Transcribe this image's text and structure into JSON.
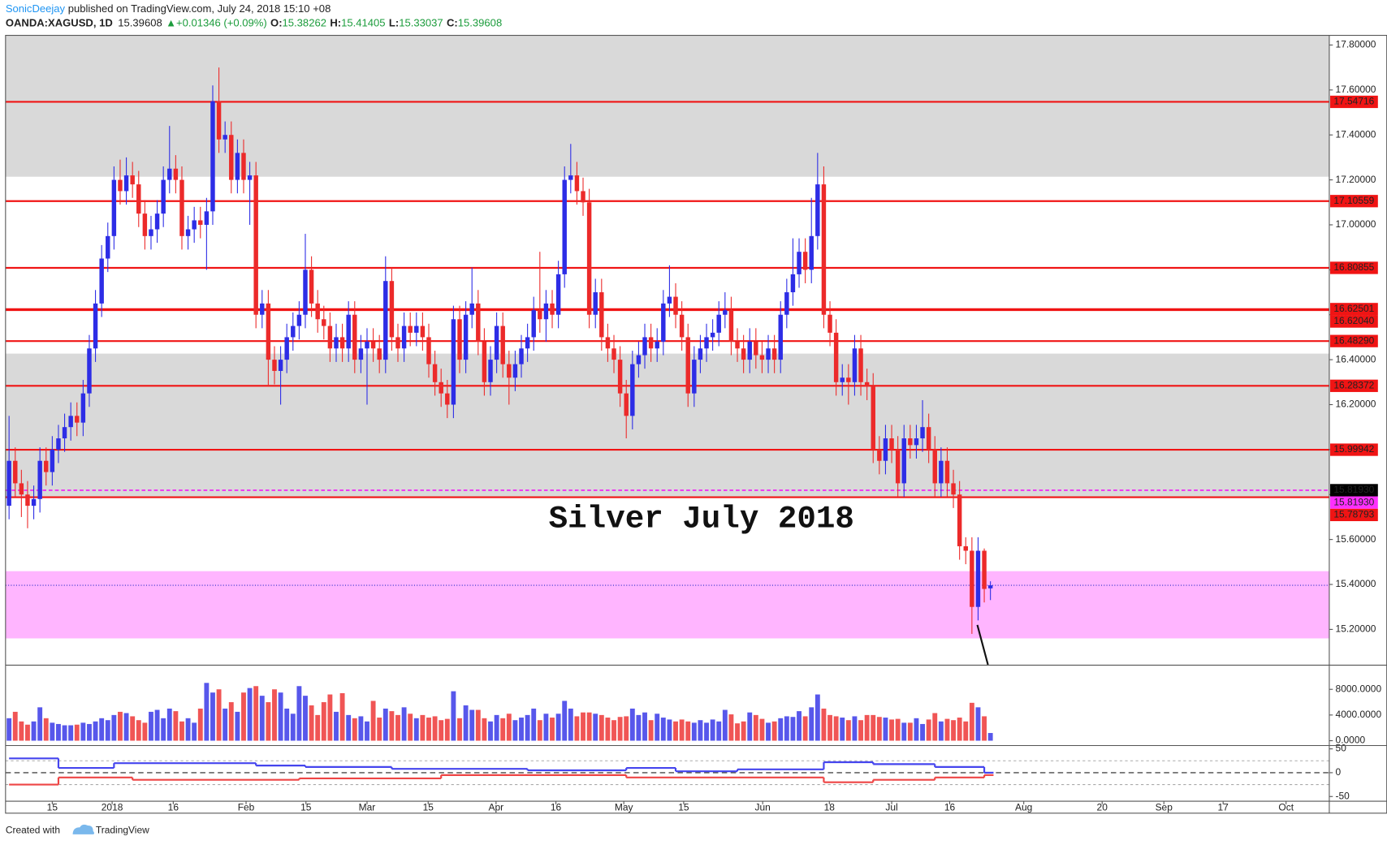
{
  "header": {
    "author": "SonicDeejay",
    "published": " published on TradingView.com, July 24, 2018 15:10 +08",
    "symbol": "OANDA:XAGUSD, 1D",
    "price": "15.39608",
    "change": "▲+0.01346 (+0.09%)",
    "ohlc": [
      {
        "label": "O:",
        "value": "15.38262"
      },
      {
        "label": "H:",
        "value": "15.41405"
      },
      {
        "label": "L:",
        "value": "15.33037"
      },
      {
        "label": "C:",
        "value": "15.39608"
      }
    ]
  },
  "chart_data": {
    "type": "candlestick",
    "annotation": "Silver July 2018",
    "open": [
      15.75,
      15.95,
      15.85,
      15.8,
      15.75,
      15.78,
      15.95,
      15.9,
      16.0,
      16.05,
      16.1,
      16.15,
      16.12,
      16.25,
      16.45,
      16.65,
      16.85,
      16.95,
      17.2,
      17.15,
      17.22,
      17.18,
      17.05,
      16.95,
      16.98,
      17.05,
      17.2,
      17.25,
      17.2,
      16.95,
      16.98,
      17.02,
      17.0,
      17.06,
      17.55,
      17.38,
      17.4,
      17.2,
      17.32,
      17.2,
      17.22,
      16.6,
      16.65,
      16.4,
      16.35,
      16.4,
      16.5,
      16.55,
      16.6,
      16.8,
      16.65,
      16.58,
      16.55,
      16.45,
      16.5,
      16.45,
      16.6,
      16.4,
      16.45,
      16.48,
      16.45,
      16.4,
      16.75,
      16.5,
      16.45,
      16.55,
      16.52,
      16.55,
      16.5,
      16.38,
      16.3,
      16.25,
      16.2,
      16.58,
      16.4,
      16.6,
      16.65,
      16.48,
      16.3,
      16.4,
      16.55,
      16.38,
      16.32,
      16.38,
      16.45,
      16.5,
      16.62,
      16.58,
      16.65,
      16.6,
      16.78,
      17.2,
      17.22,
      17.15,
      17.1,
      16.6,
      16.7,
      16.5,
      16.45,
      16.4,
      16.25,
      16.15,
      16.38,
      16.42,
      16.5,
      16.45,
      16.48,
      16.65,
      16.68,
      16.6,
      16.5,
      16.25,
      16.4,
      16.45,
      16.5,
      16.52,
      16.6,
      16.62,
      16.48,
      16.45,
      16.4,
      16.48,
      16.42,
      16.4,
      16.45,
      16.4,
      16.6,
      16.7,
      16.78,
      16.88,
      16.8,
      16.95,
      17.18,
      16.6,
      16.52,
      16.3,
      16.32,
      16.3,
      16.45,
      16.3,
      16.28,
      16.0,
      15.95,
      16.05,
      16.0,
      15.85,
      16.05,
      16.02,
      16.05,
      16.1,
      16.0,
      15.85,
      15.95,
      15.85,
      15.8,
      15.57,
      15.55,
      15.3,
      15.55,
      15.38262
    ],
    "high": [
      16.15,
      16.01,
      15.91,
      15.86,
      15.84,
      16.01,
      16.01,
      16.06,
      16.11,
      16.16,
      16.21,
      16.21,
      16.31,
      16.51,
      16.71,
      16.91,
      17.01,
      17.26,
      17.29,
      17.3,
      17.28,
      17.24,
      17.11,
      17.04,
      17.11,
      17.26,
      17.44,
      17.31,
      17.26,
      17.04,
      17.08,
      17.08,
      17.12,
      17.62,
      17.7,
      17.46,
      17.46,
      17.38,
      17.38,
      17.28,
      17.28,
      16.71,
      16.71,
      16.46,
      16.46,
      16.56,
      16.61,
      16.66,
      16.96,
      16.86,
      16.71,
      16.64,
      16.61,
      16.56,
      16.56,
      16.66,
      16.66,
      16.51,
      16.54,
      16.54,
      16.51,
      16.86,
      16.81,
      16.56,
      16.61,
      16.61,
      16.61,
      16.61,
      16.56,
      16.44,
      16.36,
      16.31,
      16.64,
      16.64,
      16.66,
      16.81,
      16.71,
      16.54,
      16.46,
      16.61,
      16.61,
      16.44,
      16.44,
      16.51,
      16.56,
      16.68,
      16.88,
      16.71,
      16.71,
      16.84,
      17.26,
      17.36,
      17.28,
      17.21,
      17.16,
      16.76,
      16.76,
      16.56,
      16.51,
      16.46,
      16.31,
      16.44,
      16.48,
      16.56,
      16.56,
      16.54,
      16.71,
      16.82,
      16.74,
      16.66,
      16.56,
      16.46,
      16.51,
      16.56,
      16.58,
      16.66,
      16.7,
      16.68,
      16.54,
      16.51,
      16.54,
      16.54,
      16.48,
      16.51,
      16.51,
      16.66,
      16.76,
      16.94,
      16.94,
      16.94,
      17.12,
      17.32,
      17.26,
      16.66,
      16.58,
      16.38,
      16.38,
      16.51,
      16.51,
      16.36,
      16.34,
      16.06,
      16.11,
      16.11,
      16.06,
      16.11,
      16.11,
      16.11,
      16.22,
      16.16,
      16.06,
      16.01,
      16.01,
      15.91,
      15.86,
      15.61,
      15.61,
      15.61,
      15.56,
      15.41405
    ],
    "low": [
      15.69,
      15.79,
      15.7,
      15.65,
      15.69,
      15.72,
      15.84,
      15.84,
      15.94,
      15.99,
      16.04,
      16.06,
      16.06,
      16.19,
      16.39,
      16.59,
      16.79,
      16.89,
      17.09,
      17.09,
      17.12,
      16.99,
      16.89,
      16.89,
      16.92,
      16.99,
      17.14,
      17.14,
      16.89,
      16.89,
      16.92,
      16.94,
      16.8,
      17.0,
      17.32,
      17.32,
      17.14,
      17.14,
      17.14,
      17.0,
      16.54,
      16.54,
      16.28,
      16.29,
      16.2,
      16.34,
      16.44,
      16.49,
      16.54,
      16.59,
      16.52,
      16.49,
      16.39,
      16.39,
      16.39,
      16.39,
      16.34,
      16.34,
      16.2,
      16.39,
      16.34,
      16.34,
      16.44,
      16.39,
      16.39,
      16.46,
      16.46,
      16.44,
      16.32,
      16.24,
      16.19,
      16.14,
      16.14,
      16.34,
      16.34,
      16.54,
      16.42,
      16.24,
      16.24,
      16.34,
      16.32,
      16.2,
      16.26,
      16.32,
      16.39,
      16.44,
      16.52,
      16.48,
      16.54,
      16.54,
      16.72,
      17.14,
      17.09,
      17.04,
      16.54,
      16.54,
      16.44,
      16.39,
      16.34,
      16.19,
      16.05,
      16.09,
      16.32,
      16.36,
      16.39,
      16.39,
      16.42,
      16.59,
      16.54,
      16.44,
      16.19,
      16.19,
      16.34,
      16.39,
      16.44,
      16.46,
      16.54,
      16.42,
      16.39,
      16.34,
      16.34,
      16.36,
      16.34,
      16.34,
      16.34,
      16.34,
      16.54,
      16.64,
      16.72,
      16.74,
      16.74,
      16.89,
      16.54,
      16.46,
      16.24,
      16.24,
      16.2,
      16.24,
      16.24,
      16.22,
      15.94,
      15.89,
      15.89,
      15.94,
      15.79,
      15.79,
      15.96,
      15.96,
      15.99,
      15.94,
      15.79,
      15.79,
      15.79,
      15.74,
      15.51,
      15.49,
      15.18,
      15.24,
      15.32,
      15.33037
    ],
    "close": [
      15.95,
      15.85,
      15.8,
      15.75,
      15.78,
      15.95,
      15.9,
      16.0,
      16.05,
      16.1,
      16.15,
      16.12,
      16.25,
      16.45,
      16.65,
      16.85,
      16.95,
      17.2,
      17.15,
      17.22,
      17.18,
      17.05,
      16.95,
      16.98,
      17.05,
      17.2,
      17.25,
      17.2,
      16.95,
      16.98,
      17.02,
      17.0,
      17.06,
      17.55,
      17.38,
      17.4,
      17.2,
      17.32,
      17.2,
      17.22,
      16.6,
      16.65,
      16.4,
      16.35,
      16.4,
      16.5,
      16.55,
      16.6,
      16.8,
      16.65,
      16.58,
      16.55,
      16.45,
      16.5,
      16.45,
      16.6,
      16.4,
      16.45,
      16.48,
      16.45,
      16.4,
      16.75,
      16.5,
      16.45,
      16.55,
      16.52,
      16.55,
      16.5,
      16.38,
      16.3,
      16.25,
      16.2,
      16.58,
      16.4,
      16.6,
      16.65,
      16.48,
      16.3,
      16.4,
      16.55,
      16.38,
      16.32,
      16.38,
      16.45,
      16.5,
      16.62,
      16.58,
      16.65,
      16.6,
      16.78,
      17.2,
      17.22,
      17.15,
      17.1,
      16.6,
      16.7,
      16.5,
      16.45,
      16.4,
      16.25,
      16.15,
      16.38,
      16.42,
      16.5,
      16.45,
      16.48,
      16.65,
      16.68,
      16.6,
      16.5,
      16.25,
      16.4,
      16.45,
      16.5,
      16.52,
      16.6,
      16.62,
      16.48,
      16.45,
      16.4,
      16.48,
      16.42,
      16.4,
      16.45,
      16.4,
      16.6,
      16.7,
      16.78,
      16.88,
      16.8,
      16.95,
      17.18,
      16.6,
      16.52,
      16.3,
      16.32,
      16.3,
      16.45,
      16.3,
      16.28,
      16.0,
      15.95,
      16.05,
      16.0,
      15.85,
      16.05,
      16.02,
      16.05,
      16.1,
      16.0,
      15.85,
      15.95,
      15.85,
      15.8,
      15.57,
      15.55,
      15.3,
      15.55,
      15.38,
      15.39608
    ],
    "up_color": "#2d2de6",
    "down_color": "#ec2a2a",
    "ylim": [
      15.043,
      17.843
    ],
    "yticks": [
      {
        "value": 17.8,
        "label": "17.80000"
      },
      {
        "value": 17.6,
        "label": "17.60000"
      },
      {
        "value": 17.4,
        "label": "17.40000"
      },
      {
        "value": 17.2,
        "label": "17.20000"
      },
      {
        "value": 17.0,
        "label": "17.00000"
      },
      {
        "value": 16.8,
        "label": "16.80000"
      },
      {
        "value": 16.6,
        "label": "16.60000"
      },
      {
        "value": 16.4,
        "label": "16.40000"
      },
      {
        "value": 16.2,
        "label": "16.20000"
      },
      {
        "value": 16.0,
        "label": "16.00000"
      },
      {
        "value": 15.8,
        "label": "15.80000"
      },
      {
        "value": 15.6,
        "label": "15.60000"
      },
      {
        "value": 15.4,
        "label": "15.40000"
      },
      {
        "value": 15.2,
        "label": "15.20000"
      }
    ],
    "xlim": [
      -0.57,
      213.9
    ],
    "xticks": [
      {
        "value": 7,
        "label": "15"
      },
      {
        "value": 16.7,
        "label": "2018"
      },
      {
        "value": 26.6,
        "label": "16"
      },
      {
        "value": 38.4,
        "label": "Feb"
      },
      {
        "value": 48.1,
        "label": "15"
      },
      {
        "value": 58,
        "label": "Mar"
      },
      {
        "value": 67.9,
        "label": "15"
      },
      {
        "value": 78.9,
        "label": "Apr"
      },
      {
        "value": 88.6,
        "label": "16"
      },
      {
        "value": 99.6,
        "label": "May"
      },
      {
        "value": 109.3,
        "label": "15"
      },
      {
        "value": 122.1,
        "label": "Jun"
      },
      {
        "value": 132.9,
        "label": "18"
      },
      {
        "value": 143,
        "label": "Jul"
      },
      {
        "value": 152.4,
        "label": "16"
      },
      {
        "value": 164.4,
        "label": "Aug"
      },
      {
        "value": 177.1,
        "label": "20"
      },
      {
        "value": 187.1,
        "label": "Sep"
      },
      {
        "value": 196.7,
        "label": "17"
      },
      {
        "value": 206.9,
        "label": "Oct"
      }
    ],
    "zones": [
      {
        "from": 17.214,
        "to": 17.843,
        "color": "#d9d9d9"
      },
      {
        "from": 15.79,
        "to": 16.427,
        "color": "#d9d9d9"
      },
      {
        "from": 15.16,
        "to": 15.459,
        "color": "#ffb5ff"
      }
    ],
    "levels": [
      {
        "value": 17.54716,
        "label": "17.54716",
        "color": "#f01414"
      },
      {
        "value": 17.10559,
        "label": "17.10559",
        "color": "#f01414"
      },
      {
        "value": 16.80855,
        "label": "16.80855",
        "color": "#f01414"
      },
      {
        "value": 16.62501,
        "label": "16.62501",
        "color": "#f01414"
      },
      {
        "value": 16.6204,
        "label": "16.62040",
        "color": "#f01414"
      },
      {
        "value": 16.4829,
        "label": "16.48290",
        "color": "#f01414"
      },
      {
        "value": 16.28372,
        "label": "16.28372",
        "color": "#f01414"
      },
      {
        "value": 15.99942,
        "label": "15.99942",
        "color": "#f01414"
      },
      {
        "value": 15.8193,
        "label": "15.81930",
        "color": "#000000",
        "line_color": "#7b1fa2",
        "dashed": true
      },
      {
        "value": 15.8193,
        "label": "15.81930",
        "color": "#ff2fff",
        "line_color": "#ff2fff",
        "dashed": true
      },
      {
        "value": 15.78793,
        "label": "15.78793",
        "color": "#f01414"
      }
    ],
    "last_price": {
      "value": 15.39608,
      "color": "#2a2ac8"
    },
    "volume": {
      "values": [
        3500,
        4500,
        3000,
        2500,
        3000,
        5200,
        3500,
        2800,
        2600,
        2400,
        2400,
        2500,
        2800,
        2600,
        3000,
        3500,
        3200,
        4000,
        4500,
        4300,
        3800,
        3200,
        2800,
        4500,
        4800,
        3500,
        5000,
        4600,
        3000,
        3500,
        2800,
        5000,
        9000,
        7500,
        8000,
        5000,
        6000,
        4500,
        7500,
        8200,
        8500,
        7000,
        6000,
        8000,
        7500,
        5000,
        4200,
        8500,
        7000,
        5500,
        4000,
        6000,
        7200,
        4500,
        7400,
        4000,
        3500,
        3800,
        3000,
        6200,
        3600,
        5000,
        4600,
        4000,
        5200,
        4200,
        3500,
        4000,
        3600,
        3800,
        3200,
        3400,
        7700,
        3500,
        5500,
        4800,
        4800,
        3500,
        3000,
        4000,
        3500,
        4200,
        3200,
        3600,
        4000,
        5000,
        3200,
        4200,
        3600,
        4200,
        6200,
        5000,
        3800,
        4400,
        4400,
        4200,
        4000,
        3600,
        3200,
        3700,
        3800,
        5000,
        4000,
        4400,
        3200,
        4200,
        3600,
        3300,
        3000,
        3300,
        3000,
        2800,
        3200,
        2800,
        3300,
        3000,
        4800,
        4100,
        2700,
        3000,
        4400,
        4000,
        3400,
        2800,
        3000,
        3500,
        3800,
        3700,
        4600,
        3800,
        5200,
        7200,
        5000,
        4000,
        3800,
        3600,
        3200,
        3800,
        3200,
        4000,
        4000,
        3700,
        3600,
        3300,
        3400,
        2800,
        2800,
        3500,
        2600,
        3300,
        4300,
        3000,
        3400,
        3200,
        3600,
        3000,
        5900,
        5200,
        3800,
        1200
      ],
      "ylim": [
        0,
        11700
      ],
      "yticks": [
        {
          "value": 8000,
          "label": "8000.0000"
        },
        {
          "value": 4000,
          "label": "4000.0000"
        },
        {
          "value": 0,
          "label": "0.0000"
        }
      ]
    },
    "indicator": {
      "series": [
        {
          "color": "#4545ee",
          "x": [
            0,
            8,
            17,
            40,
            48,
            62,
            84,
            100,
            108,
            118,
            132,
            140,
            150,
            158
          ],
          "values": [
            30,
            10,
            20,
            15,
            12,
            8,
            5,
            10,
            3,
            7,
            22,
            18,
            12,
            0
          ]
        },
        {
          "color": "#ee4545",
          "x": [
            0,
            8,
            20,
            47,
            70,
            100,
            118,
            132,
            140,
            150,
            158
          ],
          "values": [
            -25,
            -10,
            -15,
            -12,
            -5,
            -10,
            -10,
            -20,
            -15,
            -10,
            -5
          ]
        }
      ],
      "ylim": [
        -59,
        56
      ],
      "yticks": [
        50,
        0,
        -50
      ],
      "levels": [
        25,
        -25
      ]
    }
  },
  "footer": {
    "created": "Created with",
    "brand": "TradingView"
  }
}
